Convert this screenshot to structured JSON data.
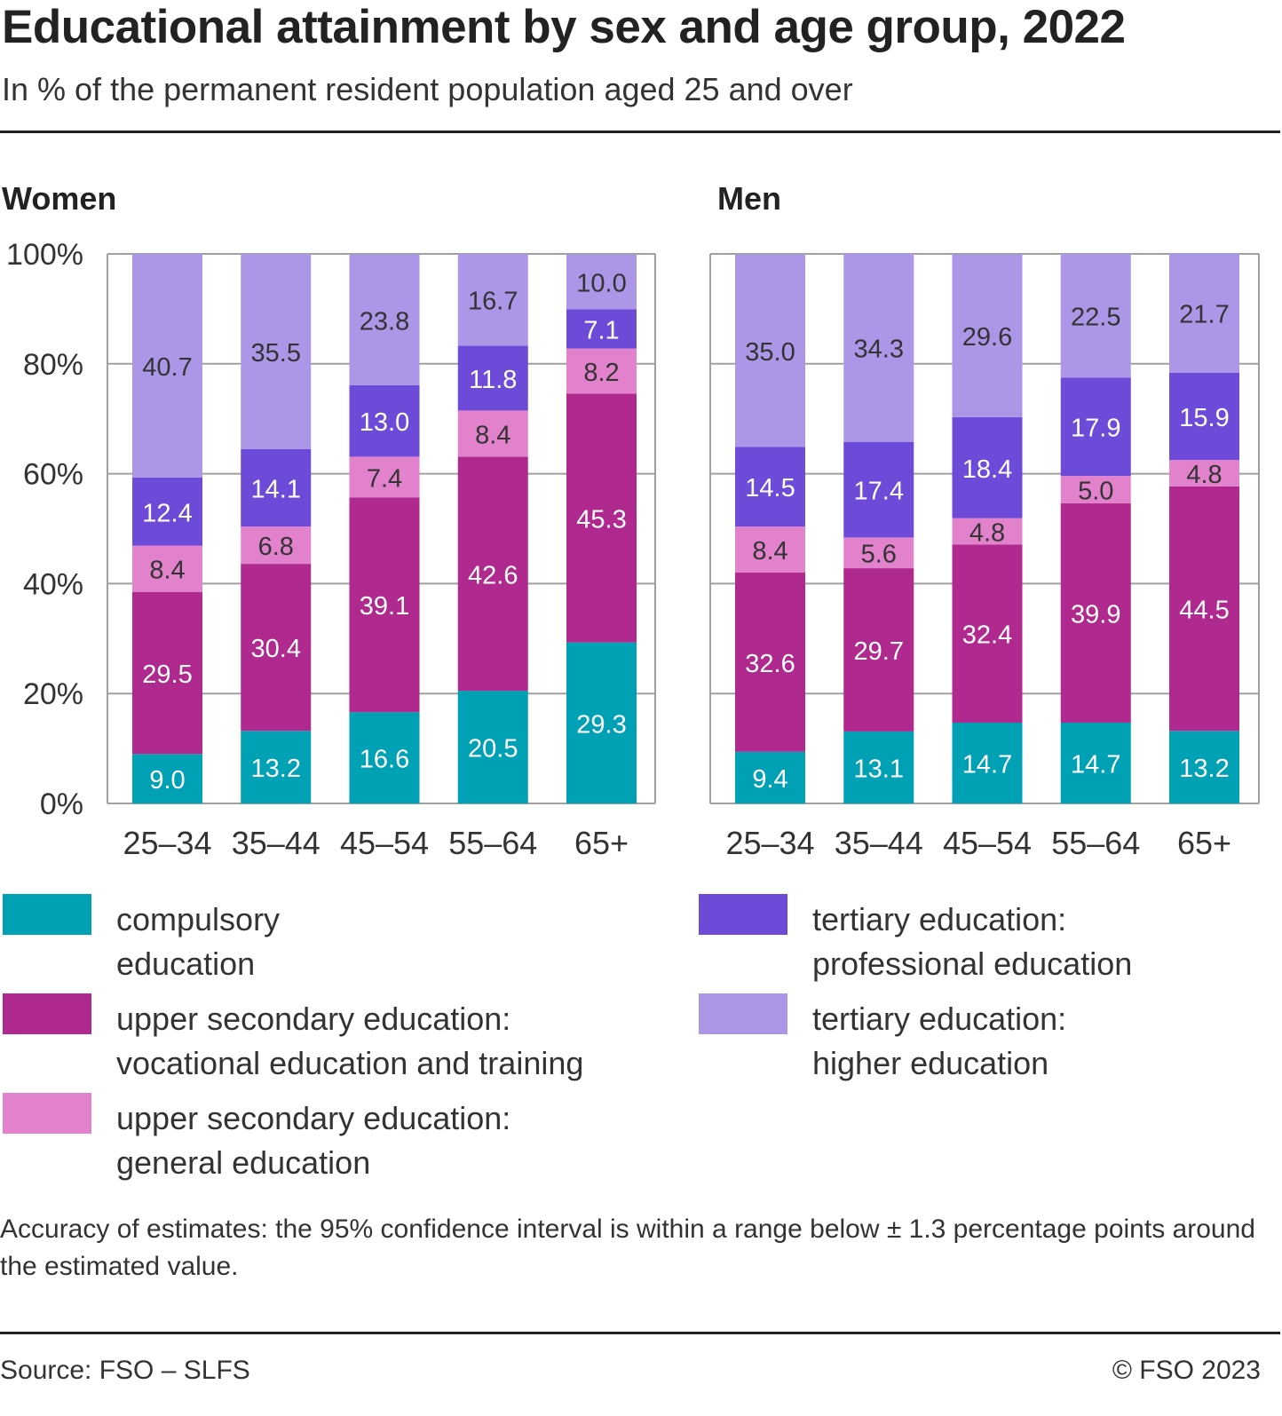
{
  "title": "Educational attainment by sex and age group, 2022",
  "subtitle": "In % of the permanent resident population aged 25 and over",
  "colors": {
    "compulsory": "#00a0b5",
    "vocational": "#b0298e",
    "general": "#e382cc",
    "professional": "#6e4ad9",
    "higher": "#ac96e8"
  },
  "chart_data": [
    {
      "type": "bar",
      "stacked": true,
      "title": "Women",
      "categories": [
        "25–34",
        "35–44",
        "45–54",
        "55–64",
        "65+"
      ],
      "ylim": [
        0,
        100
      ],
      "yticks": [
        "0%",
        "20%",
        "40%",
        "60%",
        "80%",
        "100%"
      ],
      "grid": true,
      "series": [
        {
          "key": "compulsory",
          "name": "compulsory education",
          "values": [
            9.0,
            13.2,
            16.6,
            20.5,
            29.3
          ]
        },
        {
          "key": "vocational",
          "name": "upper secondary education: vocational education and training",
          "values": [
            29.5,
            30.4,
            39.1,
            42.6,
            45.3
          ]
        },
        {
          "key": "general",
          "name": "upper secondary education: general education",
          "values": [
            8.4,
            6.8,
            7.4,
            8.4,
            8.2
          ]
        },
        {
          "key": "professional",
          "name": "tertiary education: professional education",
          "values": [
            12.4,
            14.1,
            13.0,
            11.8,
            7.1
          ]
        },
        {
          "key": "higher",
          "name": "tertiary education: higher education",
          "values": [
            40.7,
            35.5,
            23.8,
            16.7,
            10.0
          ]
        }
      ]
    },
    {
      "type": "bar",
      "stacked": true,
      "title": "Men",
      "categories": [
        "25–34",
        "35–44",
        "45–54",
        "55–64",
        "65+"
      ],
      "ylim": [
        0,
        100
      ],
      "grid": true,
      "series": [
        {
          "key": "compulsory",
          "name": "compulsory education",
          "values": [
            9.4,
            13.1,
            14.7,
            14.7,
            13.2
          ]
        },
        {
          "key": "vocational",
          "name": "upper secondary education: vocational education and training",
          "values": [
            32.6,
            29.7,
            32.4,
            39.9,
            44.5
          ]
        },
        {
          "key": "general",
          "name": "upper secondary education: general education",
          "values": [
            8.4,
            5.6,
            4.8,
            5.0,
            4.8
          ]
        },
        {
          "key": "professional",
          "name": "tertiary education: professional education",
          "values": [
            14.5,
            17.4,
            18.4,
            17.9,
            15.9
          ]
        },
        {
          "key": "higher",
          "name": "tertiary education: higher education",
          "values": [
            35.0,
            34.3,
            29.6,
            22.5,
            21.7
          ]
        }
      ]
    }
  ],
  "legend": {
    "placement": "bottom",
    "items": [
      {
        "key": "compulsory",
        "label": "compulsory\neducation"
      },
      {
        "key": "vocational",
        "label": "upper secondary education:\nvocational education and training"
      },
      {
        "key": "general",
        "label": "upper secondary education:\ngeneral education"
      },
      {
        "key": "professional",
        "label": "tertiary education:\nprofessional education"
      },
      {
        "key": "higher",
        "label": "tertiary education:\nhigher education"
      }
    ]
  },
  "note": "Accuracy of estimates: the 95% confidence interval is within a range below ± 1.3 percentage points around the estimated value.",
  "source": "Source: FSO – SLFS",
  "copyright": "© FSO 2023"
}
